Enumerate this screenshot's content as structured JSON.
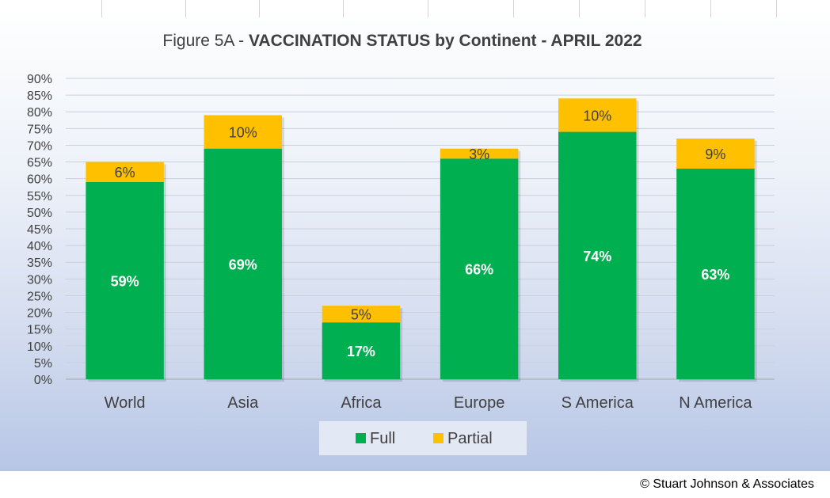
{
  "title_prefix": "Figure 5A - ",
  "title_bold": "VACCINATION STATUS by Continent - APRIL 2022",
  "copyright": "© Stuart Johnson & Associates",
  "colors": {
    "full": "#00b050",
    "partial": "#ffc000"
  },
  "chart_data": {
    "type": "bar",
    "stacked": true,
    "title": "Figure 5A - VACCINATION STATUS by Continent - APRIL 2022",
    "categories": [
      "World",
      "Asia",
      "Africa",
      "Europe",
      "S America",
      "N America"
    ],
    "series": [
      {
        "name": "Full",
        "values": [
          59,
          69,
          17,
          66,
          74,
          63
        ],
        "labels": [
          "59%",
          "69%",
          "17%",
          "66%",
          "74%",
          "63%"
        ]
      },
      {
        "name": "Partial",
        "values": [
          6,
          10,
          5,
          3,
          10,
          9
        ],
        "labels": [
          "6%",
          "10%",
          "5%",
          "3%",
          "10%",
          "9%"
        ]
      }
    ],
    "ylim": [
      0,
      90
    ],
    "yticks": [
      "0%",
      "5%",
      "10%",
      "15%",
      "20%",
      "25%",
      "30%",
      "35%",
      "40%",
      "45%",
      "50%",
      "55%",
      "60%",
      "65%",
      "70%",
      "75%",
      "80%",
      "85%",
      "90%"
    ],
    "grid": true,
    "legend": "bottom",
    "xlabel": "",
    "ylabel": ""
  }
}
